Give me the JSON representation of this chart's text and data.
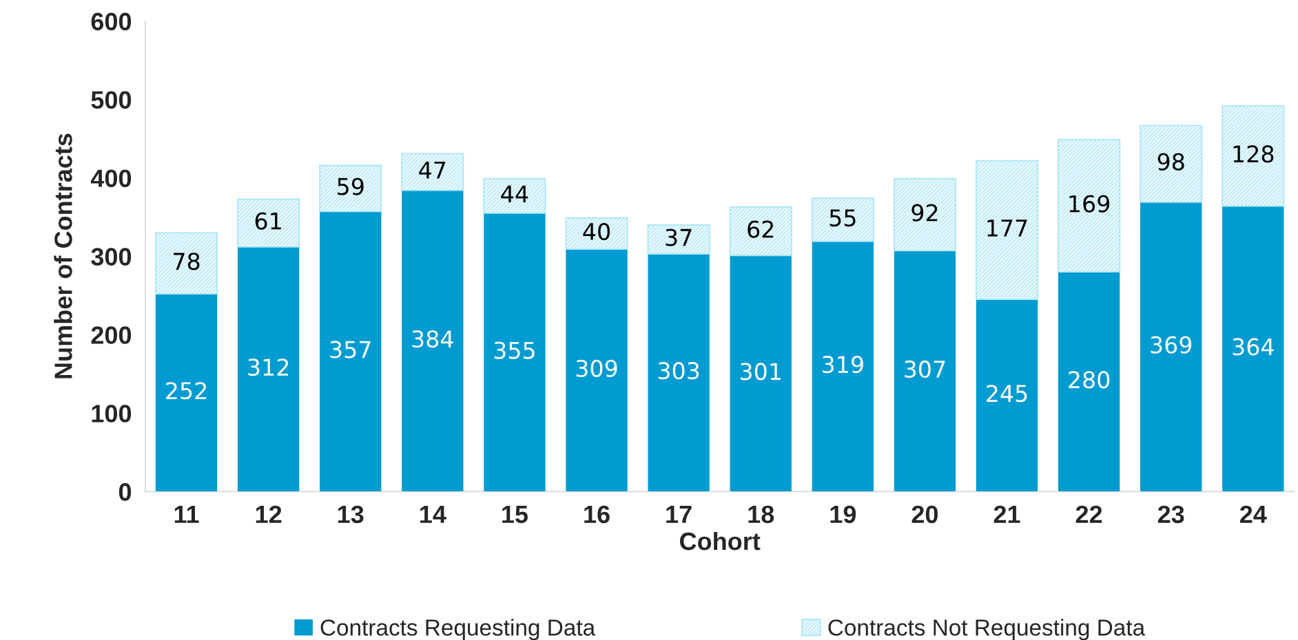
{
  "chart_data": {
    "type": "bar",
    "xlabel": "Cohort",
    "ylabel": "Number of Contracts",
    "categories": [
      "11",
      "12",
      "13",
      "14",
      "15",
      "16",
      "17",
      "18",
      "19",
      "20",
      "21",
      "22",
      "23",
      "24"
    ],
    "stacked": true,
    "data_labels": true,
    "legend": "bottom",
    "grid": false,
    "ylim": [
      0,
      600
    ],
    "yticks": [
      0,
      100,
      200,
      300,
      400,
      500,
      600
    ],
    "series": [
      {
        "name": "Contracts Requesting Data",
        "color": "#009bd0",
        "values": [
          252,
          312,
          357,
          384,
          355,
          309,
          303,
          301,
          319,
          307,
          245,
          280,
          369,
          364
        ]
      },
      {
        "name": "Contracts Not Requesting Data",
        "color": "#a8e4f4",
        "values": [
          78,
          61,
          59,
          47,
          44,
          40,
          37,
          62,
          55,
          92,
          177,
          169,
          98,
          128
        ]
      }
    ]
  }
}
